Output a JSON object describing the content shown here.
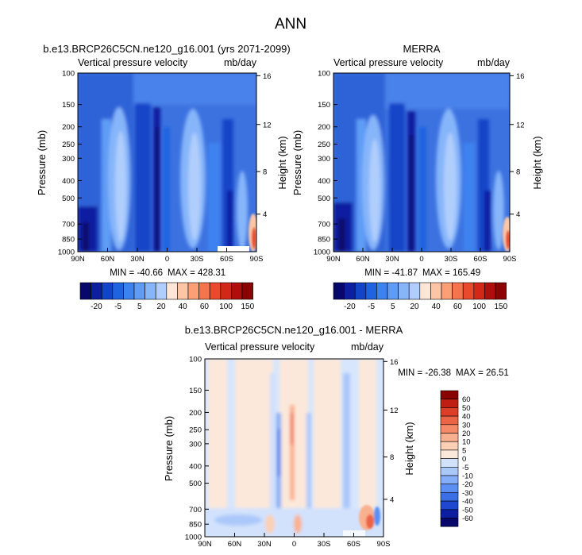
{
  "figure": {
    "title": "ANN"
  },
  "colors": {
    "colorbar_top": [
      "#08086b",
      "#0c1fa0",
      "#1244c8",
      "#1f63e0",
      "#3c82f0",
      "#5f9cf6",
      "#86b5fa",
      "#b0cefc",
      "#fde6d6",
      "#fcc6a6",
      "#fa9f76",
      "#f5744e",
      "#ea4a2c",
      "#d22818",
      "#b00e0c",
      "#8a0404"
    ],
    "colorbar_diff": [
      "#08086b",
      "#0c1fa0",
      "#1f47d0",
      "#3c6ee6",
      "#5b8ff2",
      "#84aef8",
      "#abc8fb",
      "#d2e2fd",
      "#fbe8da",
      "#fbd0b4",
      "#f9b08e",
      "#f48a68",
      "#ec6446",
      "#dc3e28",
      "#c01e12",
      "#8a0404"
    ]
  },
  "chart_data": [
    {
      "type": "heatmap",
      "panel": "model",
      "title": "b.e13.BRCP26C5CN.ne120_g16.001 (yrs 2071-2099)",
      "left_string": "Vertical pressure velocity",
      "right_string": "mb/day",
      "xlabel": "",
      "ylabel": "Pressure (mb)",
      "ylabel_right": "Height (km)",
      "x_ticks": [
        "90N",
        "60N",
        "30N",
        "0",
        "30S",
        "60S",
        "90S"
      ],
      "y_ticks": [
        "100",
        "150",
        "200",
        "250",
        "300",
        "400",
        "500",
        "700",
        "850",
        "1000"
      ],
      "y_ticks_right": [
        "16",
        "12",
        "8",
        "4"
      ],
      "ylim": [
        1000,
        100
      ],
      "min_text": "MIN = -40.66",
      "max_text": "MAX = 428.31",
      "colorbar": {
        "orientation": "horizontal",
        "labels": [
          "-20",
          "-5",
          "5",
          "20",
          "40",
          "60",
          "100",
          "150"
        ]
      }
    },
    {
      "type": "heatmap",
      "panel": "obs",
      "title": "MERRA",
      "left_string": "Vertical pressure velocity",
      "right_string": "mb/day",
      "xlabel": "",
      "ylabel": "Pressure (mb)",
      "ylabel_right": "Height (km)",
      "x_ticks": [
        "90N",
        "60N",
        "30N",
        "0",
        "30S",
        "60S",
        "90S"
      ],
      "y_ticks": [
        "100",
        "150",
        "200",
        "250",
        "300",
        "400",
        "500",
        "700",
        "850",
        "1000"
      ],
      "y_ticks_right": [
        "16",
        "12",
        "8",
        "4"
      ],
      "ylim": [
        1000,
        100
      ],
      "min_text": "MIN = -41.87",
      "max_text": "MAX = 165.49",
      "colorbar": {
        "orientation": "horizontal",
        "labels": [
          "-20",
          "-5",
          "5",
          "20",
          "40",
          "60",
          "100",
          "150"
        ]
      }
    },
    {
      "type": "heatmap",
      "panel": "diff",
      "title": "b.e13.BRCP26C5CN.ne120_g16.001 - MERRA",
      "left_string": "Vertical pressure velocity",
      "right_string": "mb/day",
      "xlabel": "",
      "ylabel": "Pressure (mb)",
      "ylabel_right": "Height (km)",
      "x_ticks": [
        "90N",
        "60N",
        "30N",
        "0",
        "30S",
        "60S",
        "90S"
      ],
      "y_ticks": [
        "100",
        "150",
        "200",
        "250",
        "300",
        "400",
        "500",
        "700",
        "850",
        "1000"
      ],
      "y_ticks_right": [
        "16",
        "12",
        "8",
        "4"
      ],
      "ylim": [
        1000,
        100
      ],
      "min_text": "MIN = -26.38",
      "max_text": "MAX = 26.51",
      "colorbar": {
        "orientation": "vertical",
        "labels": [
          "60",
          "50",
          "40",
          "30",
          "20",
          "10",
          "5",
          "0",
          "-5",
          "-10",
          "-20",
          "-30",
          "-40",
          "-50",
          "-60"
        ]
      }
    }
  ]
}
